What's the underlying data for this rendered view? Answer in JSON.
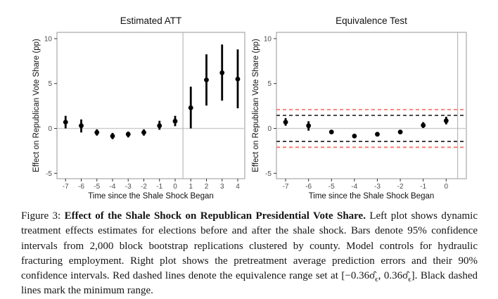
{
  "caption": {
    "label": "Figure 3: ",
    "title_bold": "Effect of the Shale Shock on Republican Presidential Vote Share.",
    "body1": " Left plot shows dynamic treatment effects estimates for elections before and after the shale shock. Bars denote 95% confidence intervals from 2,000 block bootstrap replications clustered by county. Model controls for hydraulic fracturing employment. Right plot shows the pretreatment average prediction errors and their 90% confidence intervals. Red dashed lines denote the equivalence range set at [−0.36σ̂",
    "sub1": "ϵ",
    "body2": ", 0.36σ̂",
    "sub2": "ϵ",
    "body3": "]. Black dashed lines mark the minimum range."
  },
  "chart_data": [
    {
      "type": "scatter",
      "subtype": "pointrange",
      "title": "Estimated ATT",
      "xlabel": "Time since the Shale Shock Began",
      "ylabel": "Effect on Republican Vote Share (pp)",
      "xlim": [
        -7.55,
        4.45
      ],
      "ylim": [
        -5.6,
        10.7
      ],
      "xticks": [
        -7,
        -6,
        -5,
        -4,
        -3,
        -2,
        -1,
        0,
        1,
        2,
        3,
        4
      ],
      "yticks": [
        -5,
        0,
        5,
        10
      ],
      "grid": false,
      "hline": 0,
      "vline": 0.5,
      "ci_level": "95%",
      "x": [
        -7,
        -6,
        -5,
        -4,
        -3,
        -2,
        -1,
        0,
        1,
        2,
        3,
        4
      ],
      "estimate": [
        0.7,
        0.3,
        -0.45,
        -0.85,
        -0.65,
        -0.45,
        0.3,
        0.8,
        2.3,
        5.4,
        6.2,
        5.5
      ],
      "ci_low": [
        0.0,
        -0.45,
        -0.8,
        -1.2,
        -1.0,
        -0.8,
        -0.15,
        0.25,
        0.0,
        2.55,
        3.1,
        2.25
      ],
      "ci_high": [
        1.4,
        1.0,
        -0.1,
        -0.5,
        -0.35,
        -0.1,
        0.85,
        1.4,
        4.65,
        8.25,
        9.35,
        8.8
      ]
    },
    {
      "type": "scatter",
      "subtype": "pointrange",
      "title": "Equivalence Test",
      "xlabel": "Time since the Shale Shock Began",
      "ylabel": "Effect on Republican Vote Share (pp)",
      "xlim": [
        -7.4,
        0.88
      ],
      "ylim": [
        -5.6,
        10.7
      ],
      "xticks": [
        -7,
        -6,
        -5,
        -4,
        -3,
        -2,
        -1,
        0
      ],
      "yticks": [
        -5,
        0,
        5,
        10
      ],
      "grid": false,
      "hline": 0,
      "vline": 0.5,
      "ci_level": "90%",
      "x": [
        -7,
        -6,
        -5,
        -4,
        -3,
        -2,
        -1,
        0
      ],
      "estimate": [
        0.7,
        0.3,
        -0.4,
        -0.85,
        -0.65,
        -0.4,
        0.35,
        0.85
      ],
      "ci_low": [
        0.3,
        -0.25,
        -0.55,
        -0.95,
        -0.75,
        -0.5,
        0.05,
        0.45
      ],
      "ci_high": [
        1.15,
        0.8,
        -0.25,
        -0.7,
        -0.5,
        -0.3,
        0.7,
        1.3
      ],
      "equivalence_range": [
        -2.1,
        2.1
      ],
      "minimum_range": [
        -1.45,
        1.45
      ]
    }
  ],
  "colors": {
    "point": "#000000",
    "errorbar": "#000000",
    "equivalence_dashed": "#f8766d",
    "minimum_dashed": "#333333",
    "zero_line": "#cccccc",
    "treatment_line": "#b8b8b8",
    "panel_border": "#a8a8a8",
    "tick_label": "#4d4d4d",
    "axis_text": "#111111"
  }
}
